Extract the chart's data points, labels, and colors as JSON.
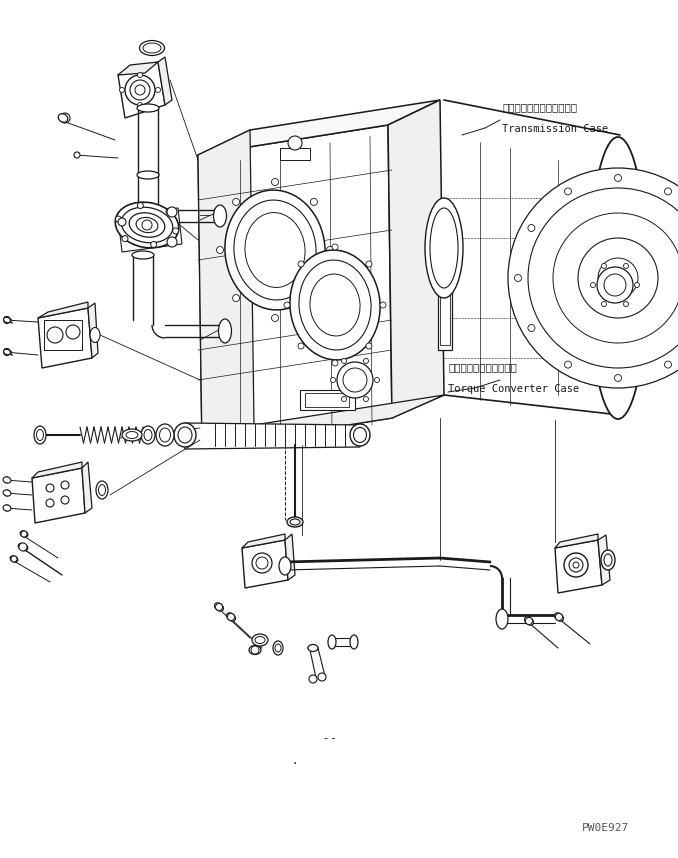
{
  "background_color": "#ffffff",
  "line_color": "#1a1a1a",
  "annotation_label1_jp": "トランスミッションケース",
  "annotation_label1_en": "Transmission Case",
  "annotation_label2_jp": "トルクコンバータケース",
  "annotation_label2_en": "Torque Converter Case",
  "watermark": "PW0E927",
  "fig_width": 6.78,
  "fig_height": 8.58,
  "dpi": 100
}
